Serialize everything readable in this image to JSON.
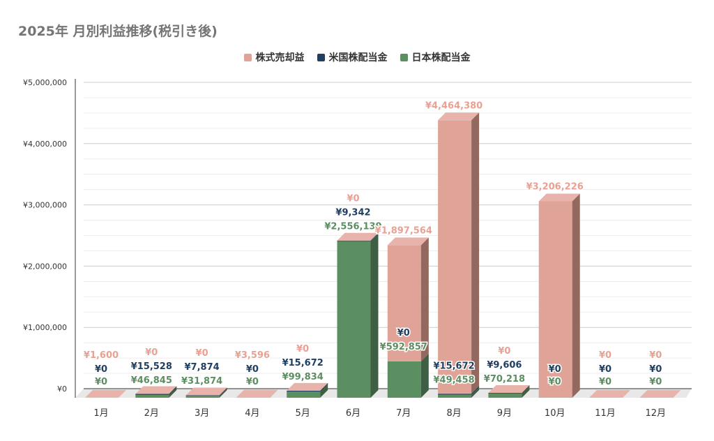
{
  "chart_data": {
    "type": "bar",
    "stacked": true,
    "title": "2025年 月別利益推移(税引き後)",
    "xlabel": "",
    "ylabel": "",
    "ylim": [
      0,
      5000000
    ],
    "yticks": [
      "¥0",
      "¥1,000,000",
      "¥2,000,000",
      "¥3,000,000",
      "¥4,000,000",
      "¥5,000,000"
    ],
    "ytick_values": [
      0,
      1000000,
      2000000,
      3000000,
      4000000,
      5000000
    ],
    "legend_position": "top",
    "categories": [
      "1月",
      "2月",
      "3月",
      "4月",
      "5月",
      "6月",
      "7月",
      "8月",
      "9月",
      "10月",
      "11月",
      "12月"
    ],
    "series": [
      {
        "name": "日本株配当金",
        "color": "#5b8f61",
        "values": [
          0,
          46845,
          31874,
          0,
          99834,
          2556139,
          592857,
          49458,
          70218,
          0,
          0,
          0
        ],
        "labels": [
          "¥0",
          "¥46,845",
          "¥31,874",
          "¥0",
          "¥99,834",
          "¥2,556,139",
          "¥592,857",
          "¥49,458",
          "¥70,218",
          "¥0",
          "¥0",
          "¥0"
        ]
      },
      {
        "name": "米国株配当金",
        "color": "#1f3f63",
        "values": [
          0,
          15528,
          7874,
          0,
          15672,
          9342,
          0,
          15672,
          9606,
          0,
          0,
          0
        ],
        "labels": [
          "¥0",
          "¥15,528",
          "¥7,874",
          "¥0",
          "¥15,672",
          "¥9,342",
          "¥0",
          "¥15,672",
          "¥9,606",
          "¥0",
          "¥0",
          "¥0"
        ]
      },
      {
        "name": "株式売却益",
        "color": "#e0a397",
        "values": [
          1600,
          0,
          0,
          3596,
          0,
          0,
          1897564,
          4464380,
          0,
          3206226,
          0,
          0
        ],
        "labels": [
          "¥1,600",
          "¥0",
          "¥0",
          "¥3,596",
          "¥0",
          "¥0",
          "¥1,897,564",
          "¥4,464,380",
          "¥0",
          "¥3,206,226",
          "¥0",
          "¥0"
        ]
      }
    ],
    "legend_order": [
      "株式売却益",
      "米国株配当金",
      "日本株配当金"
    ]
  }
}
